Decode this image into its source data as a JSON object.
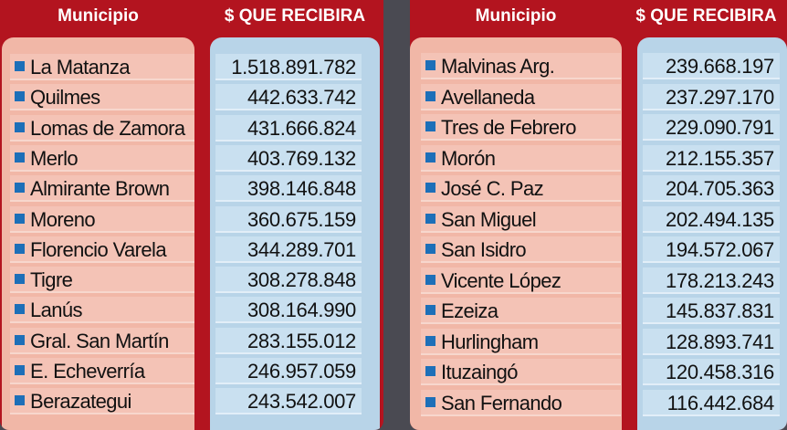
{
  "tables": [
    {
      "headers": {
        "name": "Municipio",
        "value": "$ QUE RECIBIRA"
      },
      "rows": [
        {
          "name": "La Matanza",
          "value": "1.518.891.782"
        },
        {
          "name": "Quilmes",
          "value": "442.633.742"
        },
        {
          "name": "Lomas de Zamora",
          "value": "431.666.824"
        },
        {
          "name": "Merlo",
          "value": "403.769.132"
        },
        {
          "name": "Almirante Brown",
          "value": "398.146.848"
        },
        {
          "name": "Moreno",
          "value": "360.675.159"
        },
        {
          "name": "Florencio Varela",
          "value": "344.289.701"
        },
        {
          "name": "Tigre",
          "value": "308.278.848"
        },
        {
          "name": "Lanús",
          "value": "308.164.990"
        },
        {
          "name": "Gral. San Martín",
          "value": "283.155.012"
        },
        {
          "name": "E. Echeverría",
          "value": "246.957.059"
        },
        {
          "name": "Berazategui",
          "value": "243.542.007"
        }
      ]
    },
    {
      "headers": {
        "name": "Municipio",
        "value": "$ QUE RECIBIRA"
      },
      "rows": [
        {
          "name": "Malvinas Arg.",
          "value": "239.668.197"
        },
        {
          "name": "Avellaneda",
          "value": "237.297.170"
        },
        {
          "name": "Tres de Febrero",
          "value": "229.090.791"
        },
        {
          "name": "Morón",
          "value": "212.155.357"
        },
        {
          "name": "José C. Paz",
          "value": "204.705.363"
        },
        {
          "name": "San Miguel",
          "value": "202.494.135"
        },
        {
          "name": "San Isidro",
          "value": "194.572.067"
        },
        {
          "name": "Vicente López",
          "value": "178.213.243"
        },
        {
          "name": "Ezeiza",
          "value": "145.837.831"
        },
        {
          "name": "Hurlingham",
          "value": "128.893.741"
        },
        {
          "name": "Ituzaingó",
          "value": "120.458.316"
        },
        {
          "name": "San Fernando",
          "value": "116.442.684"
        }
      ]
    }
  ],
  "colors": {
    "header_red": "#b3141f",
    "name_column": "#f4c3b6",
    "value_column": "#c9e0f0",
    "bullet": "#1d6fb8",
    "background": "#4a4a52"
  },
  "icons": {
    "bullet": "square-bullet-icon"
  }
}
